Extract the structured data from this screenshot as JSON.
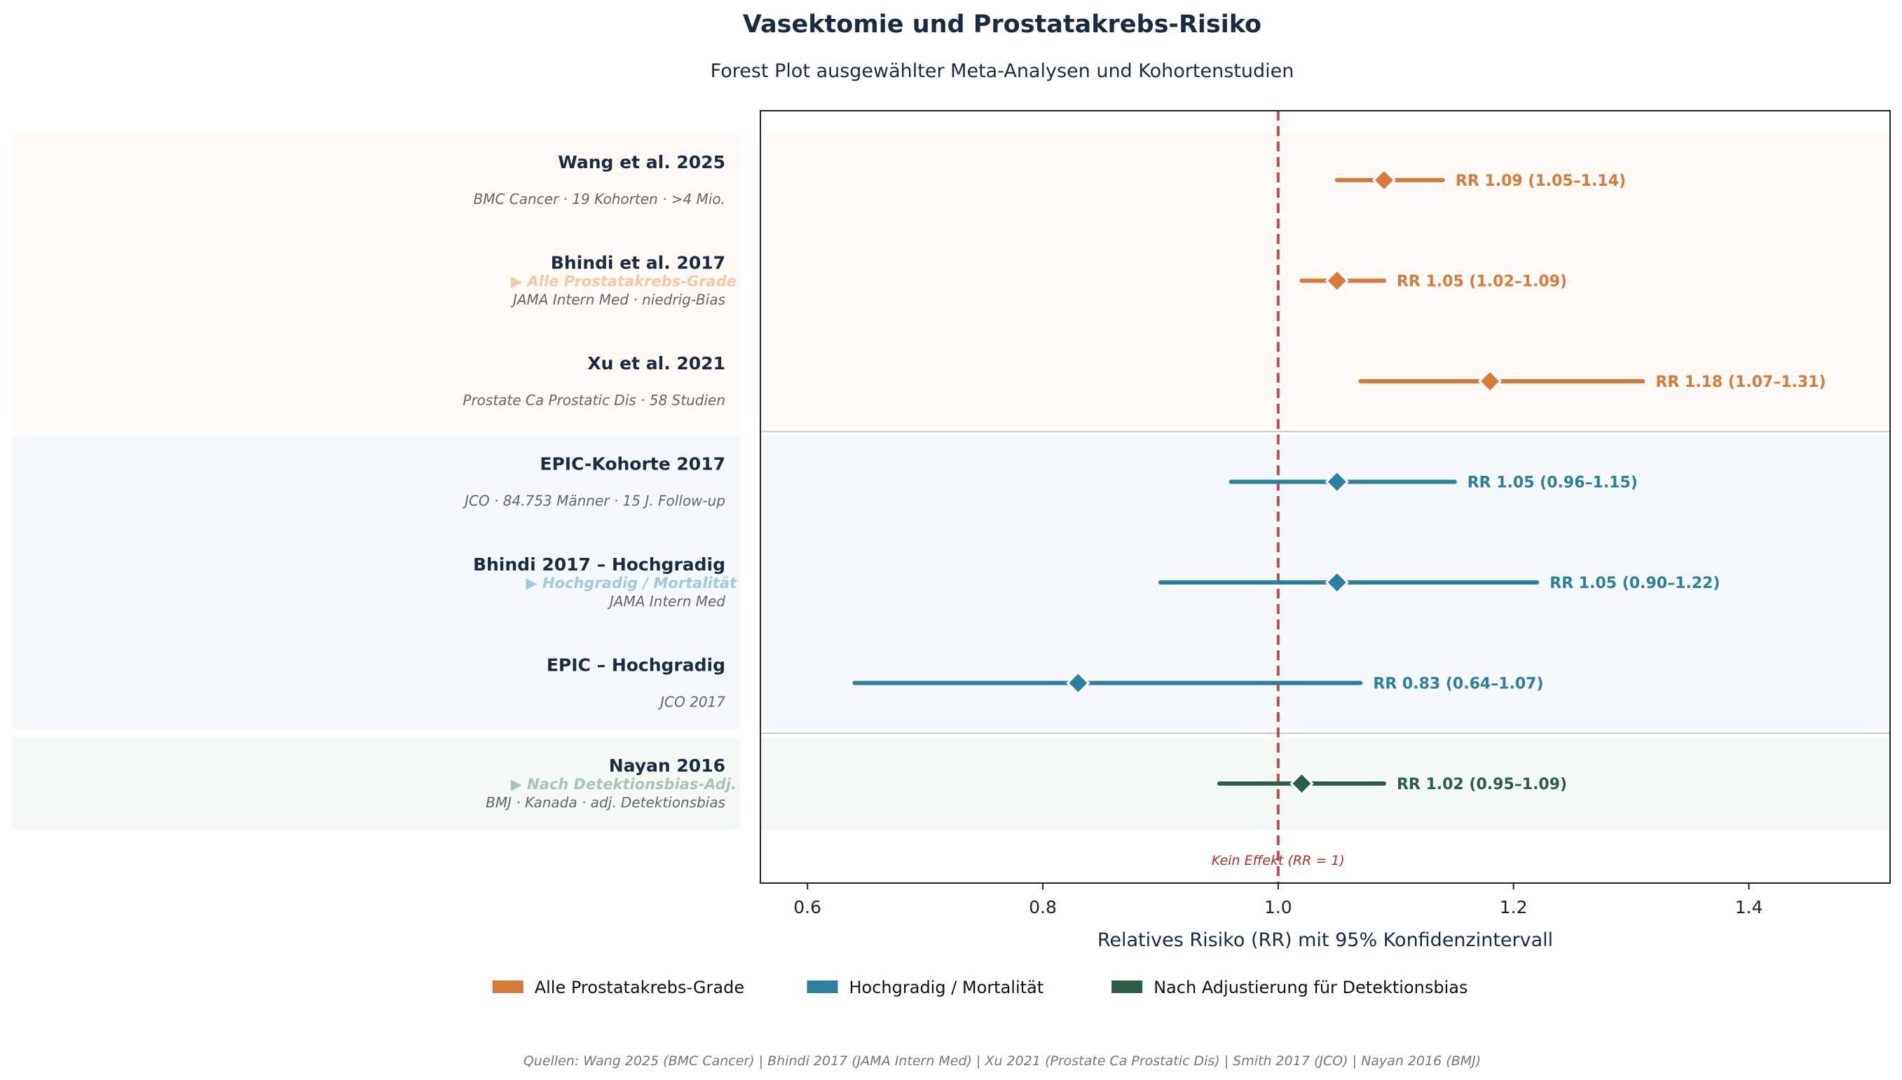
{
  "title": "Vasektomie und Prostatakrebs-Risiko",
  "subtitle": "Forest Plot ausgewählter Meta-Analysen und Kohortenstudien",
  "chart_data": {
    "type": "forest",
    "xlabel": "Relatives Risiko (RR) mit 95% Konfidenzintervall",
    "xlim": [
      0.56,
      1.52
    ],
    "xticks": [
      "0.6",
      "0.8",
      "1.0",
      "1.2",
      "1.4"
    ],
    "reference_line": {
      "value": 1.0,
      "label": "Kein Effekt (RR = 1)"
    },
    "groups": [
      {
        "name": "Alle Prostatakrebs-Grade",
        "arrow_label": "▶  Alle Prostatakrebs-Grade",
        "color": "#d97a3a",
        "label_color": "#f0c9a8",
        "bg": "#fffaf5"
      },
      {
        "name": "Hochgradig / Mortalität",
        "arrow_label": "▶  Hochgradig / Mortalität",
        "color": "#2d7fa0",
        "label_color": "#a5c9d8",
        "bg": "#f4f8fb"
      },
      {
        "name": "Nach Adjustierung für Detektionsbias",
        "arrow_label": "▶  Nach Detektionsbias-Adj.",
        "color": "#2a5e48",
        "label_color": "#a7c4b6",
        "bg": "#f5f9f6"
      }
    ],
    "studies": [
      {
        "name": "Wang et al. 2025",
        "detail": "BMC Cancer · 19 Kohorten · >4 Mio.",
        "group": 0,
        "rr": 1.09,
        "lo": 1.05,
        "hi": 1.14,
        "label": "RR 1.09 (1.05–1.14)"
      },
      {
        "name": "Bhindi et al. 2017",
        "detail": "JAMA Intern Med · niedrig-Bias",
        "group": 0,
        "rr": 1.05,
        "lo": 1.02,
        "hi": 1.09,
        "label": "RR 1.05 (1.02–1.09)"
      },
      {
        "name": "Xu et al. 2021",
        "detail": "Prostate Ca Prostatic Dis · 58 Studien",
        "group": 0,
        "rr": 1.18,
        "lo": 1.07,
        "hi": 1.31,
        "label": "RR 1.18 (1.07–1.31)"
      },
      {
        "name": "EPIC-Kohorte 2017",
        "detail": "JCO · 84.753 Männer · 15 J. Follow-up",
        "group": 1,
        "rr": 1.05,
        "lo": 0.96,
        "hi": 1.15,
        "label": "RR 1.05 (0.96–1.15)"
      },
      {
        "name": "Bhindi 2017 – Hochgradig",
        "detail": "JAMA Intern Med",
        "group": 1,
        "rr": 1.05,
        "lo": 0.9,
        "hi": 1.22,
        "label": "RR 1.05 (0.90–1.22)"
      },
      {
        "name": "EPIC – Hochgradig",
        "detail": "JCO 2017",
        "group": 1,
        "rr": 0.83,
        "lo": 0.64,
        "hi": 1.07,
        "label": "RR 0.83 (0.64–1.07)"
      },
      {
        "name": "Nayan 2016",
        "detail": "BMJ · Kanada · adj. Detektionsbias",
        "group": 2,
        "rr": 1.02,
        "lo": 0.95,
        "hi": 1.09,
        "label": "RR 1.02 (0.95–1.09)"
      }
    ]
  },
  "legend": [
    {
      "label": "Alle Prostatakrebs-Grade",
      "color": "#d97a3a"
    },
    {
      "label": "Hochgradig / Mortalität",
      "color": "#2d7fa0"
    },
    {
      "label": "Nach Adjustierung für Detektionsbias",
      "color": "#2a5e48"
    }
  ],
  "source": "Quellen: Wang 2025 (BMC Cancer)  |  Bhindi 2017 (JAMA Intern Med)  |  Xu 2021 (Prostate Ca Prostatic Dis)  |  Smith 2017 (JCO)  |  Nayan 2016 (BMJ)"
}
